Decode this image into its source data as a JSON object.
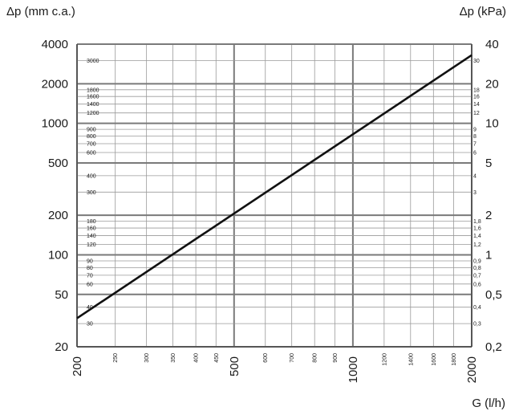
{
  "chart_data": {
    "type": "line",
    "x_title": "G (l/h)",
    "y_left_title": "Δp (mm c.a.)",
    "y_right_title": "Δp (kPa)",
    "x_scale": "log",
    "y_scale": "log",
    "xlim": [
      200,
      2000
    ],
    "ylim_left": [
      20,
      4000
    ],
    "ylim_right": [
      0.2,
      40
    ],
    "grid": true,
    "x_ticks_major": [
      "200",
      "500",
      "1000",
      "2000"
    ],
    "x_ticks_minor": [
      "250",
      "300",
      "350",
      "400",
      "450",
      "600",
      "700",
      "800",
      "900",
      "1200",
      "1400",
      "1600",
      "1800"
    ],
    "y_left_ticks_major": [
      "20",
      "50",
      "100",
      "200",
      "500",
      "1000",
      "2000",
      "4000"
    ],
    "y_left_ticks_minor": [
      "30",
      "40",
      "60",
      "70",
      "80",
      "90",
      "120",
      "140",
      "160",
      "180",
      "300",
      "400",
      "600",
      "700",
      "800",
      "900",
      "1200",
      "1400",
      "1600",
      "1800",
      "3000"
    ],
    "y_right_ticks_major": [
      "0,2",
      "0,5",
      "1",
      "2",
      "5",
      "10",
      "20",
      "40"
    ],
    "y_right_ticks_minor": [
      "0,3",
      "0,4",
      "0,6",
      "0,7",
      "0,8",
      "0,9",
      "1,2",
      "1,4",
      "1,6",
      "1,8",
      "3",
      "4",
      "6",
      "7",
      "8",
      "9",
      "12",
      "14",
      "16",
      "18",
      "30"
    ],
    "series": [
      {
        "x": [
          200,
          2000
        ],
        "y": [
          33,
          3300
        ]
      }
    ]
  }
}
